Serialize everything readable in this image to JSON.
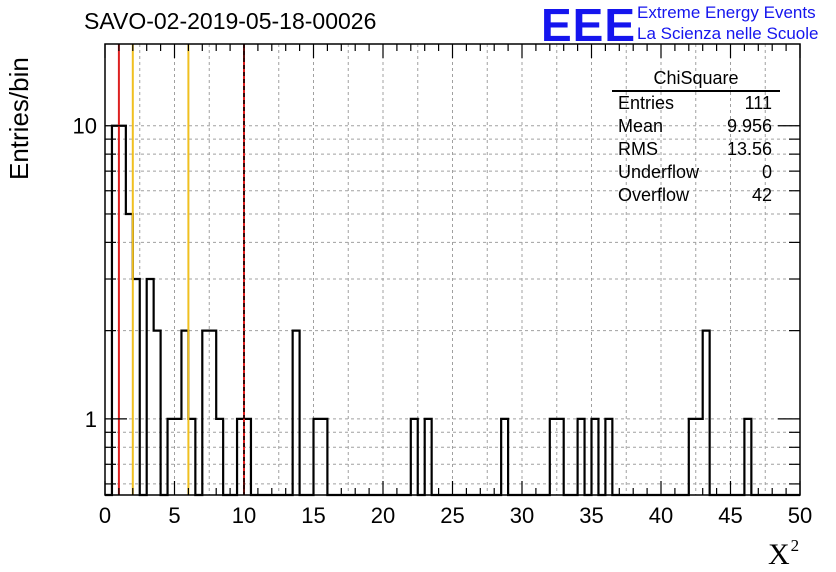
{
  "title": "SAVO-02-2019-05-18-00026",
  "logo": {
    "mark": "EEE",
    "line1": "Extreme Energy Events",
    "line2": "La Scienza nelle Scuole",
    "color": "#1515ee"
  },
  "stats": {
    "title": "ChiSquare",
    "rows": [
      {
        "label": "Entries",
        "value": "111"
      },
      {
        "label": "Mean",
        "value": "9.956"
      },
      {
        "label": "RMS",
        "value": "13.56"
      },
      {
        "label": "Underflow",
        "value": "0"
      },
      {
        "label": "Overflow",
        "value": "42"
      }
    ]
  },
  "chart_data": {
    "type": "histogram",
    "title": "SAVO-02-2019-05-18-00026",
    "xlabel": "X",
    "xlabel_superscript": "2",
    "ylabel": "Entries/bin",
    "xlim": [
      0,
      50
    ],
    "ylim": [
      0.55,
      19
    ],
    "yscale": "log",
    "grid": true,
    "bin_width": 0.5,
    "x_ticks": [
      0,
      5,
      10,
      15,
      20,
      25,
      30,
      35,
      40,
      45,
      50
    ],
    "y_ticks": [
      1,
      10
    ],
    "bins": [
      {
        "x": 0.5,
        "count": 10
      },
      {
        "x": 1.0,
        "count": 10
      },
      {
        "x": 1.5,
        "count": 5
      },
      {
        "x": 2.0,
        "count": 3
      },
      {
        "x": 2.5,
        "count": 0
      },
      {
        "x": 3.0,
        "count": 3
      },
      {
        "x": 3.5,
        "count": 2
      },
      {
        "x": 4.0,
        "count": 0
      },
      {
        "x": 4.5,
        "count": 1
      },
      {
        "x": 5.0,
        "count": 1
      },
      {
        "x": 5.5,
        "count": 2
      },
      {
        "x": 6.0,
        "count": 1
      },
      {
        "x": 6.5,
        "count": 0
      },
      {
        "x": 7.0,
        "count": 2
      },
      {
        "x": 7.5,
        "count": 2
      },
      {
        "x": 8.0,
        "count": 1
      },
      {
        "x": 8.5,
        "count": 0
      },
      {
        "x": 9.0,
        "count": 0
      },
      {
        "x": 9.5,
        "count": 1
      },
      {
        "x": 10.0,
        "count": 1
      },
      {
        "x": 13.5,
        "count": 2
      },
      {
        "x": 15.0,
        "count": 1
      },
      {
        "x": 15.5,
        "count": 1
      },
      {
        "x": 22.0,
        "count": 1
      },
      {
        "x": 23.0,
        "count": 1
      },
      {
        "x": 28.5,
        "count": 1
      },
      {
        "x": 32.0,
        "count": 1
      },
      {
        "x": 32.5,
        "count": 1
      },
      {
        "x": 34.0,
        "count": 1
      },
      {
        "x": 35.0,
        "count": 1
      },
      {
        "x": 36.0,
        "count": 1
      },
      {
        "x": 42.0,
        "count": 1
      },
      {
        "x": 42.5,
        "count": 1
      },
      {
        "x": 43.0,
        "count": 2
      },
      {
        "x": 46.0,
        "count": 1
      }
    ],
    "reference_lines": [
      {
        "x": 1,
        "color": "#dd2020",
        "style": "solid"
      },
      {
        "x": 2,
        "color": "#f0c020",
        "style": "solid"
      },
      {
        "x": 6,
        "color": "#f0c020",
        "style": "solid"
      },
      {
        "x": 10,
        "color": "#dd2020",
        "style": "solid"
      },
      {
        "x": 10,
        "color": "#000000",
        "style": "dashed"
      }
    ]
  }
}
